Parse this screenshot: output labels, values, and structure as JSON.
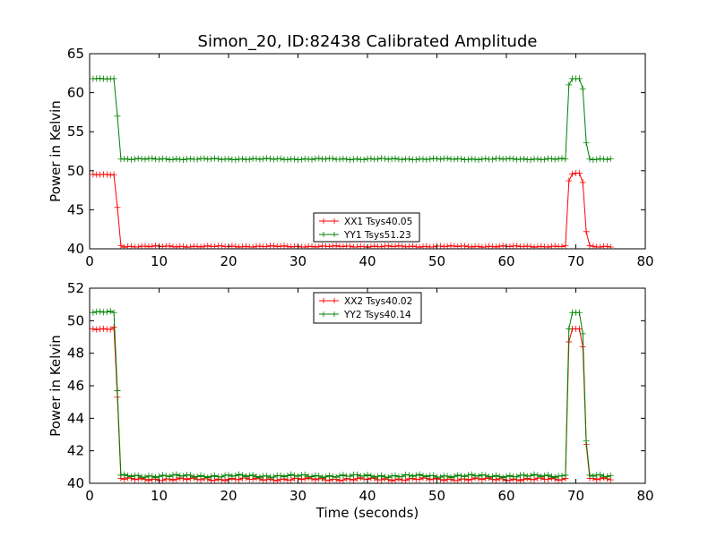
{
  "title": "Simon_20, ID:82438 Calibrated Amplitude",
  "xlabel": "Time (seconds)",
  "colors": {
    "XX": "#ff0000",
    "YY": "#008000"
  },
  "chart_data": [
    {
      "type": "line",
      "title": "Simon_20, ID:82438 Calibrated Amplitude",
      "xlabel": "",
      "ylabel": "Power in Kelvin",
      "xlim": [
        0,
        80
      ],
      "ylim": [
        40,
        65
      ],
      "xticks": [
        0,
        10,
        20,
        30,
        40,
        50,
        60,
        70,
        80
      ],
      "yticks": [
        40,
        45,
        50,
        55,
        60,
        65
      ],
      "grid": false,
      "legend": "lower-center",
      "series": [
        {
          "name": "XX1 Tsys40.05",
          "color": "#ff0000",
          "marker": "+",
          "profile": {
            "t_start": 0.5,
            "t_end": 75.0,
            "step": 0.5,
            "high": 49.5,
            "low": 40.3,
            "fall": [
              [
                3.5,
                49.5
              ],
              [
                4.0,
                45.3
              ],
              [
                4.5,
                40.4
              ]
            ],
            "rise": [
              [
                68.5,
                40.4
              ],
              [
                69.0,
                48.7
              ],
              [
                69.5,
                49.6
              ],
              [
                70.0,
                49.7
              ],
              [
                70.5,
                49.7
              ],
              [
                71.0,
                48.5
              ],
              [
                71.5,
                42.2
              ],
              [
                72.0,
                40.4
              ]
            ]
          }
        },
        {
          "name": "YY1 Tsys51.23",
          "color": "#008000",
          "marker": "+",
          "profile": {
            "t_start": 0.5,
            "t_end": 75.0,
            "step": 0.5,
            "high": 61.8,
            "low": 51.5,
            "fall": [
              [
                3.5,
                61.8
              ],
              [
                4.0,
                57.0
              ],
              [
                4.5,
                51.5
              ]
            ],
            "rise": [
              [
                68.5,
                51.5
              ],
              [
                69.0,
                61.0
              ],
              [
                69.5,
                61.8
              ],
              [
                70.0,
                61.8
              ],
              [
                70.5,
                61.8
              ],
              [
                71.0,
                60.5
              ],
              [
                71.5,
                53.6
              ],
              [
                72.0,
                51.5
              ]
            ]
          }
        }
      ]
    },
    {
      "type": "line",
      "title": "",
      "xlabel": "Time (seconds)",
      "ylabel": "Power in Kelvin",
      "xlim": [
        0,
        80
      ],
      "ylim": [
        40,
        52
      ],
      "xticks": [
        0,
        10,
        20,
        30,
        40,
        50,
        60,
        70,
        80
      ],
      "yticks": [
        40,
        42,
        44,
        46,
        48,
        50,
        52
      ],
      "grid": false,
      "legend": "upper-center",
      "series": [
        {
          "name": "XX2 Tsys40.02",
          "color": "#ff0000",
          "marker": "+",
          "profile": {
            "t_start": 0.5,
            "t_end": 75.0,
            "step": 0.5,
            "high": 49.5,
            "low": 40.25,
            "fall": [
              [
                3.5,
                49.6
              ],
              [
                4.0,
                45.3
              ],
              [
                4.5,
                40.3
              ]
            ],
            "rise": [
              [
                68.5,
                40.3
              ],
              [
                69.0,
                48.7
              ],
              [
                69.5,
                49.5
              ],
              [
                70.0,
                49.5
              ],
              [
                70.5,
                49.5
              ],
              [
                71.0,
                48.4
              ],
              [
                71.5,
                42.4
              ],
              [
                72.0,
                40.3
              ]
            ]
          }
        },
        {
          "name": "YY2 Tsys40.14",
          "color": "#008000",
          "marker": "+",
          "profile": {
            "t_start": 0.5,
            "t_end": 75.0,
            "step": 0.5,
            "high": 50.55,
            "low": 40.45,
            "fall": [
              [
                3.5,
                50.5
              ],
              [
                4.0,
                45.7
              ],
              [
                4.5,
                40.5
              ]
            ],
            "rise": [
              [
                68.5,
                40.5
              ],
              [
                69.0,
                49.5
              ],
              [
                69.5,
                50.5
              ],
              [
                70.0,
                50.5
              ],
              [
                70.5,
                50.5
              ],
              [
                71.0,
                49.2
              ],
              [
                71.5,
                42.6
              ],
              [
                72.0,
                40.5
              ]
            ]
          }
        }
      ]
    }
  ]
}
